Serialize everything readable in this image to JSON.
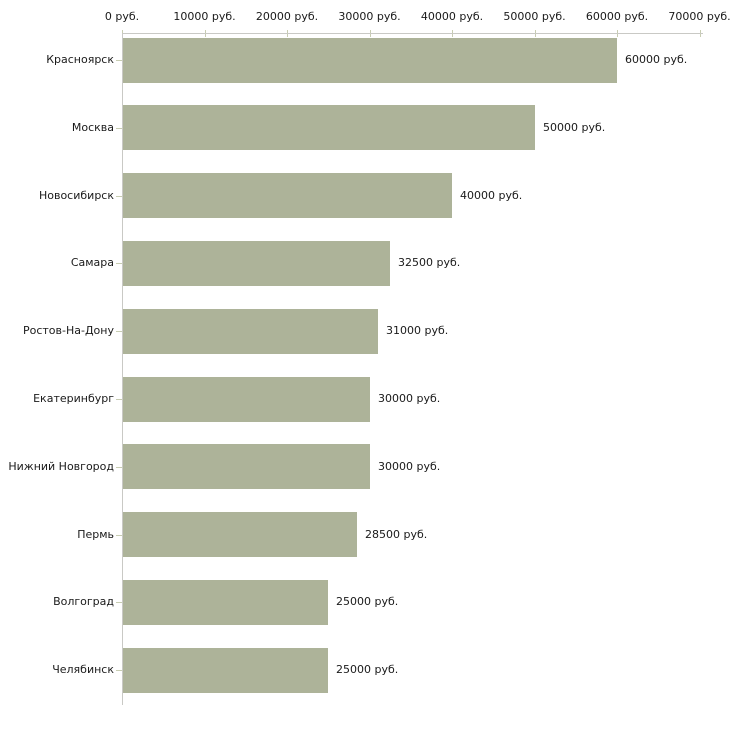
{
  "chart_data": {
    "type": "bar",
    "orientation": "horizontal",
    "title": "",
    "xlabel": "",
    "ylabel": "",
    "xlim": [
      0,
      70000
    ],
    "grid": false,
    "legend": false,
    "unit": "руб.",
    "categories": [
      "Красноярск",
      "Москва",
      "Новосибирск",
      "Самара",
      "Ростов-На-Дону",
      "Екатеринбург",
      "Нижний Новгород",
      "Пермь",
      "Волгоград",
      "Челябинск"
    ],
    "values": [
      60000,
      50000,
      40000,
      32500,
      31000,
      30000,
      30000,
      28500,
      25000,
      25000
    ],
    "value_labels": [
      "60000 руб.",
      "50000 руб.",
      "40000 руб.",
      "32500 руб.",
      "31000 руб.",
      "30000 руб.",
      "30000 руб.",
      "28500 руб.",
      "25000 руб.",
      "25000 руб."
    ],
    "x_tick_values": [
      0,
      10000,
      20000,
      30000,
      40000,
      50000,
      60000,
      70000
    ],
    "x_tick_labels": [
      "0 руб.",
      "10000 руб.",
      "20000 руб.",
      "30000 руб.",
      "40000 руб.",
      "50000 руб.",
      "60000 руб.",
      "70000 руб."
    ],
    "colors": {
      "bar": "#adb399",
      "axis_line": "#c9c9c5",
      "tick": "#c8cdb2",
      "text": "#1a1a1a",
      "background": "#ffffff"
    }
  }
}
